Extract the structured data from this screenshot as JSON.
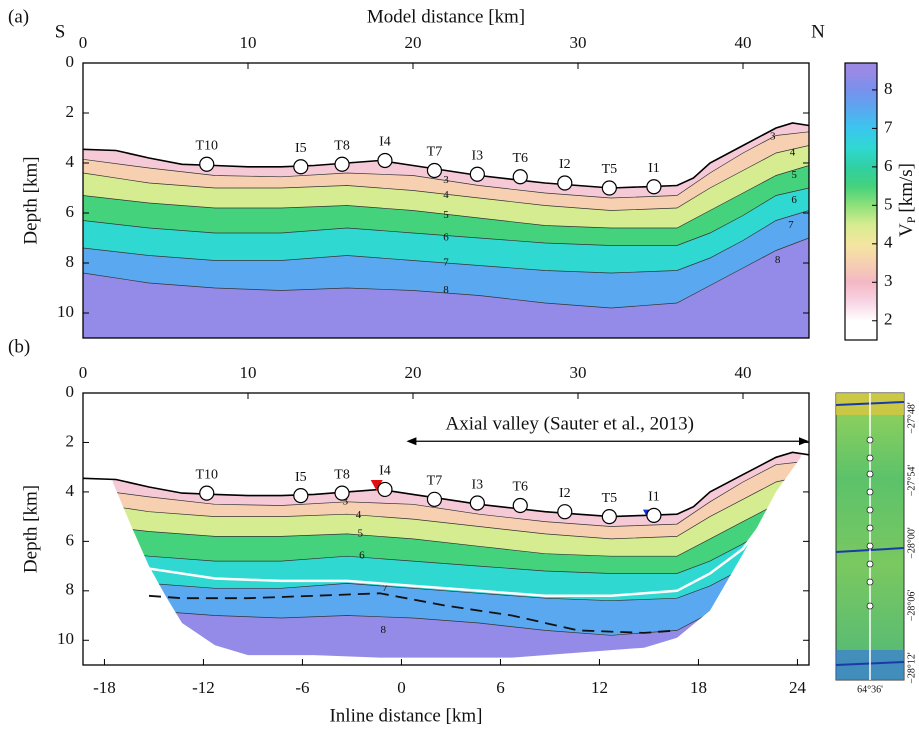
{
  "chart_data": [
    {
      "type": "contour",
      "panel_label": "(a)",
      "left_corner": "S",
      "right_corner": "N",
      "xlabel": "Model distance [km]",
      "ylabel": "Depth [km]",
      "xlim": [
        0,
        44
      ],
      "ylim": [
        0,
        11
      ],
      "xticks": [
        0,
        10,
        20,
        30,
        40
      ],
      "yticks": [
        0,
        2,
        4,
        6,
        8,
        10
      ],
      "seafloor": {
        "x": [
          0,
          2,
          4,
          6,
          8,
          10,
          12,
          14,
          16,
          18,
          20,
          22,
          24,
          26,
          28,
          30,
          32,
          34,
          36,
          37,
          38,
          40,
          42,
          43,
          44
        ],
        "depth": [
          3.45,
          3.5,
          3.8,
          4.05,
          4.1,
          4.15,
          4.15,
          4.1,
          4.0,
          3.9,
          4.1,
          4.3,
          4.5,
          4.65,
          4.8,
          4.9,
          5.0,
          4.95,
          4.9,
          4.6,
          4.0,
          3.3,
          2.6,
          2.4,
          2.5
        ]
      },
      "contour_x": [
        0,
        4,
        8,
        12,
        16,
        20,
        24,
        28,
        32,
        36,
        38,
        40,
        42,
        44
      ],
      "contours": [
        {
          "level": 3,
          "depth": [
            3.85,
            4.2,
            4.5,
            4.55,
            4.4,
            4.5,
            4.9,
            5.2,
            5.4,
            5.3,
            4.4,
            3.6,
            2.9,
            2.75
          ],
          "label_x": [
            41.8,
            22
          ],
          "label_y": [
            2.95,
            4.7
          ]
        },
        {
          "level": 4,
          "depth": [
            4.4,
            4.8,
            5.0,
            5.0,
            4.9,
            5.1,
            5.4,
            5.7,
            5.9,
            5.8,
            5.0,
            4.3,
            3.6,
            3.3
          ],
          "label_x": [
            43,
            22
          ],
          "label_y": [
            3.6,
            5.3
          ]
        },
        {
          "level": 5,
          "depth": [
            5.3,
            5.6,
            5.8,
            5.8,
            5.7,
            5.9,
            6.2,
            6.5,
            6.6,
            6.6,
            5.9,
            5.2,
            4.5,
            4.1
          ],
          "label_x": [
            43.1,
            22
          ],
          "label_y": [
            4.5,
            6.1
          ]
        },
        {
          "level": 6,
          "depth": [
            6.3,
            6.6,
            6.8,
            6.8,
            6.6,
            6.8,
            7.0,
            7.2,
            7.3,
            7.3,
            6.8,
            6.1,
            5.3,
            5.0
          ],
          "label_x": [
            43.1,
            22
          ],
          "label_y": [
            5.5,
            7.0
          ]
        },
        {
          "level": 7,
          "depth": [
            7.4,
            7.7,
            7.9,
            7.9,
            7.7,
            7.9,
            8.1,
            8.3,
            8.4,
            8.3,
            7.8,
            7.1,
            6.3,
            5.9
          ],
          "label_x": [
            42.9,
            22
          ],
          "label_y": [
            6.5,
            8.0
          ]
        },
        {
          "level": 8,
          "depth": [
            8.4,
            8.8,
            9.0,
            9.1,
            9.0,
            9.1,
            9.3,
            9.6,
            9.8,
            9.6,
            8.9,
            8.2,
            7.5,
            7.0
          ],
          "label_x": [
            42.1,
            22
          ],
          "label_y": [
            7.9,
            9.1
          ]
        }
      ],
      "stations": {
        "names": [
          "T10",
          "I5",
          "T8",
          "I4",
          "T7",
          "I3",
          "T6",
          "I2",
          "T5",
          "I1"
        ],
        "x": [
          7.5,
          13.2,
          15.7,
          18.3,
          21.3,
          23.9,
          26.5,
          29.2,
          31.9,
          34.6
        ],
        "depth": [
          4.05,
          4.15,
          4.05,
          3.9,
          4.3,
          4.45,
          4.55,
          4.8,
          5.0,
          4.95
        ]
      },
      "colorbar": {
        "label": "V",
        "label_sub": "P",
        "label_unit": "[km/s]",
        "lim": [
          1.5,
          8.7
        ],
        "ticks": [
          2,
          3,
          4,
          5,
          6,
          7,
          8
        ],
        "levels": [
          2,
          2.5,
          3,
          3.5,
          4,
          4.5,
          5,
          5.5,
          6,
          6.5,
          7,
          7.5,
          8,
          8.5
        ],
        "colors": [
          "#ffffff",
          "#f8d4e4",
          "#f4b8c4",
          "#f6d0b0",
          "#f4e6a0",
          "#d6ec90",
          "#8ee07a",
          "#44d27c",
          "#30d0a4",
          "#30d8d2",
          "#3ac6ee",
          "#5aa8f0",
          "#7890ec",
          "#9a8ae6"
        ]
      }
    },
    {
      "type": "contour",
      "panel_label": "(b)",
      "x2label": "Inline distance [km]",
      "ylabel": "Depth [km]",
      "xlim": [
        0,
        44
      ],
      "ylim": [
        0,
        11
      ],
      "xticks": [
        0,
        10,
        20,
        30,
        40
      ],
      "yticks": [
        0,
        2,
        4,
        6,
        8,
        10
      ],
      "x2lim": [
        -19.3,
        24.7
      ],
      "x2ticks": [
        -18,
        -12,
        -6,
        0,
        6,
        12,
        18,
        24
      ],
      "seafloor": {
        "x": [
          0,
          2,
          4,
          6,
          8,
          10,
          12,
          14,
          16,
          18,
          20,
          22,
          24,
          26,
          28,
          30,
          32,
          34,
          36,
          37,
          38,
          40,
          42,
          43,
          44
        ],
        "depth": [
          3.45,
          3.5,
          3.8,
          4.05,
          4.1,
          4.15,
          4.15,
          4.1,
          4.0,
          3.9,
          4.1,
          4.3,
          4.5,
          4.65,
          4.8,
          4.9,
          5.0,
          4.95,
          4.9,
          4.6,
          4.0,
          3.3,
          2.6,
          2.4,
          2.5
        ]
      },
      "coverage": {
        "x": [
          1.8,
          3,
          4,
          5,
          6,
          8,
          10,
          14,
          18,
          22,
          26,
          30,
          34,
          36,
          38,
          40,
          42,
          43.5
        ],
        "depth": [
          3.6,
          5.5,
          7.0,
          8.2,
          9.3,
          10.2,
          10.6,
          10.6,
          10.7,
          10.7,
          10.7,
          10.5,
          10.3,
          9.9,
          8.8,
          6.5,
          4.0,
          2.6
        ]
      },
      "contour_x": [
        0,
        4,
        8,
        12,
        16,
        20,
        24,
        28,
        32,
        36,
        38,
        40,
        42,
        44
      ],
      "contours": [
        {
          "level": 3,
          "depth": [
            3.85,
            4.2,
            4.5,
            4.55,
            4.4,
            4.5,
            4.9,
            5.2,
            5.4,
            5.3,
            4.4,
            3.6,
            2.9,
            2.75
          ],
          "label_x": [
            15.9
          ],
          "label_y": [
            4.4
          ]
        },
        {
          "level": 4,
          "depth": [
            4.4,
            4.8,
            5.0,
            5.0,
            4.9,
            5.1,
            5.4,
            5.7,
            5.9,
            5.8,
            5.0,
            4.3,
            3.6,
            3.3
          ],
          "label_x": [
            16.7
          ],
          "label_y": [
            4.95
          ]
        },
        {
          "level": 5,
          "depth": [
            5.3,
            5.6,
            5.8,
            5.8,
            5.7,
            5.9,
            6.2,
            6.5,
            6.6,
            6.6,
            5.9,
            5.2,
            4.5,
            4.1
          ],
          "label_x": [
            16.8
          ],
          "label_y": [
            5.7
          ]
        },
        {
          "level": 6,
          "depth": [
            6.3,
            6.6,
            6.8,
            6.8,
            6.6,
            6.8,
            7.0,
            7.2,
            7.3,
            7.3,
            6.8,
            6.1,
            5.3,
            5.0
          ],
          "label_x": [
            16.9
          ],
          "label_y": [
            6.6
          ]
        },
        {
          "level": 7,
          "depth": [
            7.4,
            7.7,
            7.9,
            7.9,
            7.7,
            7.9,
            8.1,
            8.3,
            8.4,
            8.3,
            7.8,
            7.1,
            6.3,
            5.9
          ],
          "label_x": [
            18.3
          ],
          "label_y": [
            7.9
          ]
        },
        {
          "level": 8,
          "depth": [
            8.4,
            8.8,
            9.0,
            9.1,
            9.0,
            9.1,
            9.3,
            9.6,
            9.8,
            9.6,
            8.9,
            8.2,
            7.5,
            7.0
          ],
          "label_x": [
            18.2
          ],
          "label_y": [
            9.6
          ]
        }
      ],
      "lines": [
        {
          "color": "#ffffff",
          "dashed": false,
          "x": [
            2.8,
            4,
            8,
            12,
            16,
            20,
            24,
            28,
            32,
            36,
            38,
            40,
            42
          ],
          "depth": [
            6.5,
            7.1,
            7.5,
            7.6,
            7.6,
            7.8,
            8.0,
            8.2,
            8.2,
            8.0,
            7.3,
            6.3,
            4.5
          ]
        },
        {
          "color": "#111111",
          "dashed": true,
          "x": [
            4,
            6,
            10,
            14,
            18,
            22,
            26,
            30,
            34,
            36
          ],
          "depth": [
            8.2,
            8.3,
            8.3,
            8.2,
            8.1,
            8.6,
            9.0,
            9.6,
            9.7,
            9.6
          ]
        }
      ],
      "stations": {
        "names": [
          "T10",
          "I5",
          "T8",
          "I4",
          "T7",
          "I3",
          "T6",
          "I2",
          "T5",
          "I1"
        ],
        "x": [
          7.5,
          13.2,
          15.7,
          18.3,
          21.3,
          23.9,
          26.5,
          29.2,
          31.9,
          34.6
        ],
        "depth": [
          4.05,
          4.15,
          4.05,
          3.9,
          4.3,
          4.45,
          4.55,
          4.8,
          5.0,
          4.95
        ]
      },
      "markers": {
        "x": [
          17.8,
          34.3
        ],
        "depth": [
          3.8,
          5.0
        ],
        "colors": [
          "#e01010",
          "#1030e0"
        ]
      },
      "annotation": {
        "text": "Axial valley (Sauter et al., 2013)",
        "x_start": 19.6,
        "x_end": 44,
        "depth": 1.95,
        "text_x": 29.5,
        "text_depth": 1.3
      },
      "inset": {
        "lat_labels": [
          "−27°48'",
          "−27°54'",
          "−28°00'",
          "−28°06'",
          "−28°12'"
        ],
        "lon_label": "64°36'"
      }
    }
  ]
}
